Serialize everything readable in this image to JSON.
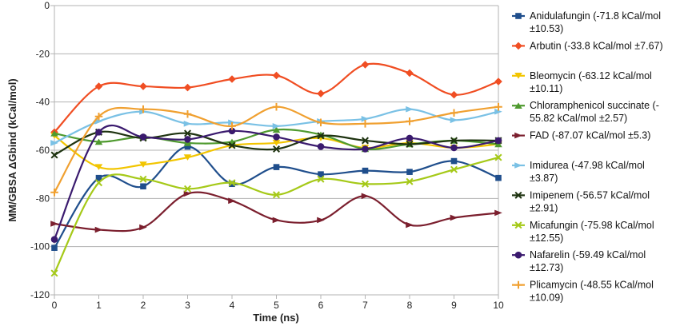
{
  "chart_data": {
    "type": "line",
    "xlabel": "Time (ns)",
    "ylabel": "MM/GBSA ΔGbind (kCal/mol)",
    "x": [
      0,
      1,
      2,
      3,
      4,
      5,
      6,
      7,
      8,
      9,
      10
    ],
    "xlim": [
      0,
      10
    ],
    "ylim": [
      -120,
      0
    ],
    "xticks": [
      "0",
      "1",
      "2",
      "3",
      "4",
      "5",
      "6",
      "7",
      "8",
      "9",
      "10"
    ],
    "yticks": [
      0,
      -20,
      -40,
      -60,
      -80,
      -100,
      -120
    ],
    "ytick_labels": [
      "0",
      "-20",
      "-40",
      "-60",
      "-80",
      "-100",
      "-120"
    ],
    "grid": "horizontal",
    "legend_position": "right",
    "series": [
      {
        "name": "Anidulafungin",
        "label_lines": [
          "Anidulafungin (-71.8 kCal/mol",
          "±10.53)"
        ],
        "color": "#1f4e8c",
        "marker": "square",
        "values": [
          -100.5,
          -71.5,
          -75,
          -58.5,
          -74,
          -67,
          -70,
          -68.5,
          -69,
          -64.5,
          -71.5
        ]
      },
      {
        "name": "Arbutin",
        "label_lines": [
          "Arbutin (-33.8 kCal/mol ±7.67)"
        ],
        "color": "#f04e23",
        "marker": "diamond",
        "values": [
          -52.5,
          -33.5,
          -33.5,
          -34,
          -30.5,
          -29,
          -36.5,
          -24.5,
          -28,
          -37,
          -31.5
        ]
      },
      {
        "name": "Bleomycin",
        "label_lines": [
          "Bleomycin (-63.12 kCal/mol",
          "±10.11)"
        ],
        "color": "#f2c500",
        "marker": "triangle-down",
        "values": [
          -54,
          -67,
          -66,
          -63,
          -58,
          -57,
          -55,
          -59,
          -57,
          -59,
          -57.5
        ]
      },
      {
        "name": "Chloramphenicol succinate",
        "label_lines": [
          "Chloramphenicol succinate (-",
          "55.82 kCal/mol ±2.57)"
        ],
        "color": "#4f9a2f",
        "marker": "triangle-up",
        "values": [
          -53,
          -56.5,
          -54.5,
          -57,
          -56.5,
          -51.5,
          -53.5,
          -59.5,
          -57.5,
          -56,
          -57.5
        ]
      },
      {
        "name": "FAD",
        "label_lines": [
          "FAD (-87.07 kCal/mol ±5.3)"
        ],
        "color": "#7b1f2e",
        "marker": "arrow",
        "values": [
          -90.5,
          -93,
          -92,
          -78,
          -81,
          -89,
          -89,
          -79,
          -91,
          -88,
          -86
        ]
      },
      {
        "name": "Imidurea",
        "label_lines": [
          "Imidurea (-47.98 kCal/mol",
          "±3.87)"
        ],
        "color": "#7ac1e5",
        "marker": "arrow",
        "values": [
          -57,
          -48,
          -44,
          -49,
          -48.5,
          -50,
          -48,
          -47,
          -43,
          -47.5,
          -44
        ]
      },
      {
        "name": "Imipenem",
        "label_lines": [
          "Imipenem (-56.57 kCal/mol",
          "±2.91)"
        ],
        "color": "#1e3310",
        "marker": "x",
        "values": [
          -62,
          -52.5,
          -55,
          -53,
          -58,
          -59.5,
          -54,
          -56,
          -57.5,
          -56,
          -56
        ]
      },
      {
        "name": "Micafungin",
        "label_lines": [
          "Micafungin (-75.98 kCal/mol",
          "±12.55)"
        ],
        "color": "#a5c918",
        "marker": "x",
        "values": [
          -111,
          -73.5,
          -72,
          -76,
          -73.5,
          -78.5,
          -72,
          -74,
          -73,
          -68,
          -63
        ]
      },
      {
        "name": "Nafarelin",
        "label_lines": [
          "Nafarelin (-59.49 kCal/mol",
          "±12.73)"
        ],
        "color": "#3a1a6e",
        "marker": "circle",
        "values": [
          -97,
          -52.5,
          -54.5,
          -55.5,
          -52,
          -54.5,
          -58.5,
          -59.5,
          -55,
          -59,
          -56
        ]
      },
      {
        "name": "Plicamycin",
        "label_lines": [
          "Plicamycin (-48.55 kCal/mol",
          "±10.09)"
        ],
        "color": "#f0a030",
        "marker": "plus",
        "values": [
          -77.5,
          -46,
          -43,
          -45,
          -50,
          -42,
          -48.5,
          -49,
          -48,
          -44.5,
          -42
        ]
      }
    ]
  }
}
